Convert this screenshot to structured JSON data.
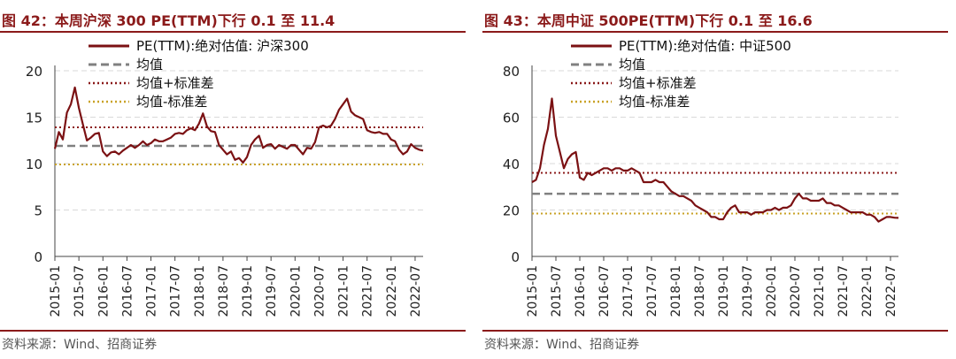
{
  "charts": [
    {
      "title": "图 42：本周沪深 300 PE(TTM)下行 0.1 至 11.4",
      "source": "资料来源：Wind、招商证券",
      "accent": "#8B1A1A"
    },
    {
      "title": "图 43：本周中证 500PE(TTM)下行 0.1 至 16.6",
      "source": "资料来源：Wind、招商证券",
      "accent": "#8B1A1A"
    }
  ],
  "chart_data": [
    {
      "type": "line",
      "xlabel": "",
      "ylabel": "",
      "ylim": [
        0,
        20
      ],
      "yticks": [
        0,
        5,
        10,
        15,
        20
      ],
      "xlim": [
        "2015-01",
        "2022-09"
      ],
      "xticks": [
        "2015-01",
        "2015-07",
        "2016-01",
        "2016-07",
        "2017-01",
        "2017-07",
        "2018-01",
        "2018-07",
        "2019-01",
        "2019-07",
        "2020-01",
        "2020-07",
        "2021-01",
        "2021-07",
        "2022-01",
        "2022-07"
      ],
      "grid": "horizontal dashed",
      "legend_position": "top",
      "series": [
        {
          "name": "PE(TTM):绝对估值: 沪深300",
          "color": "#7B1113",
          "style": "solid",
          "points": [
            [
              "2015-01",
              11.6
            ],
            [
              "2015-02",
              13.4
            ],
            [
              "2015-03",
              12.6
            ],
            [
              "2015-04",
              15.5
            ],
            [
              "2015-05",
              16.4
            ],
            [
              "2015-06",
              18.2
            ],
            [
              "2015-07",
              16.0
            ],
            [
              "2015-08",
              14.2
            ],
            [
              "2015-09",
              12.5
            ],
            [
              "2015-10",
              12.8
            ],
            [
              "2015-11",
              13.2
            ],
            [
              "2015-12",
              13.3
            ],
            [
              "2016-01",
              11.3
            ],
            [
              "2016-02",
              10.8
            ],
            [
              "2016-03",
              11.2
            ],
            [
              "2016-04",
              11.3
            ],
            [
              "2016-05",
              11.0
            ],
            [
              "2016-06",
              11.4
            ],
            [
              "2016-07",
              11.7
            ],
            [
              "2016-08",
              12.0
            ],
            [
              "2016-09",
              11.7
            ],
            [
              "2016-10",
              12.0
            ],
            [
              "2016-11",
              12.4
            ],
            [
              "2016-12",
              12.0
            ],
            [
              "2017-01",
              12.2
            ],
            [
              "2017-02",
              12.6
            ],
            [
              "2017-03",
              12.4
            ],
            [
              "2017-04",
              12.4
            ],
            [
              "2017-05",
              12.6
            ],
            [
              "2017-06",
              12.8
            ],
            [
              "2017-07",
              13.2
            ],
            [
              "2017-08",
              13.3
            ],
            [
              "2017-09",
              13.2
            ],
            [
              "2017-10",
              13.6
            ],
            [
              "2017-11",
              13.8
            ],
            [
              "2017-12",
              13.6
            ],
            [
              "2018-01",
              14.3
            ],
            [
              "2018-02",
              15.4
            ],
            [
              "2018-03",
              14.0
            ],
            [
              "2018-04",
              13.5
            ],
            [
              "2018-05",
              13.4
            ],
            [
              "2018-06",
              12.0
            ],
            [
              "2018-07",
              11.5
            ],
            [
              "2018-08",
              11.0
            ],
            [
              "2018-09",
              11.3
            ],
            [
              "2018-10",
              10.4
            ],
            [
              "2018-11",
              10.6
            ],
            [
              "2018-12",
              10.1
            ],
            [
              "2019-01",
              10.7
            ],
            [
              "2019-02",
              12.0
            ],
            [
              "2019-03",
              12.6
            ],
            [
              "2019-04",
              13.0
            ],
            [
              "2019-05",
              11.7
            ],
            [
              "2019-06",
              12.0
            ],
            [
              "2019-07",
              12.1
            ],
            [
              "2019-08",
              11.6
            ],
            [
              "2019-09",
              12.0
            ],
            [
              "2019-10",
              11.8
            ],
            [
              "2019-11",
              11.6
            ],
            [
              "2019-12",
              12.0
            ],
            [
              "2020-01",
              12.0
            ],
            [
              "2020-02",
              11.5
            ],
            [
              "2020-03",
              11.0
            ],
            [
              "2020-04",
              11.7
            ],
            [
              "2020-05",
              11.6
            ],
            [
              "2020-06",
              12.3
            ],
            [
              "2020-07",
              13.9
            ],
            [
              "2020-08",
              14.1
            ],
            [
              "2020-09",
              13.9
            ],
            [
              "2020-10",
              14.1
            ],
            [
              "2020-11",
              14.8
            ],
            [
              "2020-12",
              15.8
            ],
            [
              "2021-01",
              16.4
            ],
            [
              "2021-02",
              17.0
            ],
            [
              "2021-03",
              15.6
            ],
            [
              "2021-04",
              15.2
            ],
            [
              "2021-05",
              15.0
            ],
            [
              "2021-06",
              14.8
            ],
            [
              "2021-07",
              13.6
            ],
            [
              "2021-08",
              13.4
            ],
            [
              "2021-09",
              13.3
            ],
            [
              "2021-10",
              13.4
            ],
            [
              "2021-11",
              13.2
            ],
            [
              "2021-12",
              13.2
            ],
            [
              "2022-01",
              12.6
            ],
            [
              "2022-02",
              12.4
            ],
            [
              "2022-03",
              11.5
            ],
            [
              "2022-04",
              11.0
            ],
            [
              "2022-05",
              11.3
            ],
            [
              "2022-06",
              12.1
            ],
            [
              "2022-07",
              11.7
            ],
            [
              "2022-08",
              11.5
            ],
            [
              "2022-09",
              11.4
            ]
          ]
        },
        {
          "name": "均值",
          "color": "#808080",
          "style": "dashed",
          "value": 11.9
        },
        {
          "name": "均值+标准差",
          "color": "#8B1A1A",
          "style": "dotted",
          "value": 13.9
        },
        {
          "name": "均值-标准差",
          "color": "#C9A227",
          "style": "dotted",
          "value": 9.9
        }
      ]
    },
    {
      "type": "line",
      "xlabel": "",
      "ylabel": "",
      "ylim": [
        0,
        80
      ],
      "yticks": [
        0,
        20,
        40,
        60,
        80
      ],
      "xlim": [
        "2015-01",
        "2022-09"
      ],
      "xticks": [
        "2015-01",
        "2015-07",
        "2016-01",
        "2016-07",
        "2017-01",
        "2017-07",
        "2018-01",
        "2018-07",
        "2019-01",
        "2019-07",
        "2020-01",
        "2020-07",
        "2021-01",
        "2021-07",
        "2022-01",
        "2022-07"
      ],
      "grid": "horizontal dashed",
      "legend_position": "top",
      "series": [
        {
          "name": "PE(TTM):绝对估值: 中证500",
          "color": "#7B1113",
          "style": "solid",
          "points": [
            [
              "2015-01",
              32
            ],
            [
              "2015-02",
              33
            ],
            [
              "2015-03",
              38
            ],
            [
              "2015-04",
              48
            ],
            [
              "2015-05",
              55
            ],
            [
              "2015-06",
              68
            ],
            [
              "2015-07",
              52
            ],
            [
              "2015-08",
              45
            ],
            [
              "2015-09",
              38
            ],
            [
              "2015-10",
              42
            ],
            [
              "2015-11",
              44
            ],
            [
              "2015-12",
              45
            ],
            [
              "2016-01",
              34
            ],
            [
              "2016-02",
              33
            ],
            [
              "2016-03",
              36
            ],
            [
              "2016-04",
              35
            ],
            [
              "2016-05",
              36
            ],
            [
              "2016-06",
              37
            ],
            [
              "2016-07",
              38
            ],
            [
              "2016-08",
              38
            ],
            [
              "2016-09",
              37
            ],
            [
              "2016-10",
              38
            ],
            [
              "2016-11",
              38
            ],
            [
              "2016-12",
              37
            ],
            [
              "2017-01",
              37
            ],
            [
              "2017-02",
              38
            ],
            [
              "2017-03",
              37
            ],
            [
              "2017-04",
              36
            ],
            [
              "2017-05",
              32
            ],
            [
              "2017-06",
              32
            ],
            [
              "2017-07",
              32
            ],
            [
              "2017-08",
              33
            ],
            [
              "2017-09",
              32
            ],
            [
              "2017-10",
              32
            ],
            [
              "2017-11",
              30
            ],
            [
              "2017-12",
              28
            ],
            [
              "2018-01",
              27
            ],
            [
              "2018-02",
              26
            ],
            [
              "2018-03",
              26
            ],
            [
              "2018-04",
              25
            ],
            [
              "2018-05",
              24
            ],
            [
              "2018-06",
              22
            ],
            [
              "2018-07",
              21
            ],
            [
              "2018-08",
              20
            ],
            [
              "2018-09",
              19
            ],
            [
              "2018-10",
              17
            ],
            [
              "2018-11",
              17
            ],
            [
              "2018-12",
              16
            ],
            [
              "2019-01",
              16
            ],
            [
              "2019-02",
              19
            ],
            [
              "2019-03",
              21
            ],
            [
              "2019-04",
              22
            ],
            [
              "2019-05",
              19
            ],
            [
              "2019-06",
              19
            ],
            [
              "2019-07",
              19
            ],
            [
              "2019-08",
              18
            ],
            [
              "2019-09",
              19
            ],
            [
              "2019-10",
              19
            ],
            [
              "2019-11",
              19
            ],
            [
              "2019-12",
              20
            ],
            [
              "2020-01",
              20
            ],
            [
              "2020-02",
              21
            ],
            [
              "2020-03",
              20
            ],
            [
              "2020-04",
              21
            ],
            [
              "2020-05",
              21
            ],
            [
              "2020-06",
              22
            ],
            [
              "2020-07",
              25
            ],
            [
              "2020-08",
              27
            ],
            [
              "2020-09",
              25
            ],
            [
              "2020-10",
              25
            ],
            [
              "2020-11",
              24
            ],
            [
              "2020-12",
              24
            ],
            [
              "2021-01",
              24
            ],
            [
              "2021-02",
              25
            ],
            [
              "2021-03",
              23
            ],
            [
              "2021-04",
              23
            ],
            [
              "2021-05",
              22
            ],
            [
              "2021-06",
              22
            ],
            [
              "2021-07",
              21
            ],
            [
              "2021-08",
              20
            ],
            [
              "2021-09",
              19
            ],
            [
              "2021-10",
              19
            ],
            [
              "2021-11",
              19
            ],
            [
              "2021-12",
              19
            ],
            [
              "2022-01",
              18
            ],
            [
              "2022-02",
              18
            ],
            [
              "2022-03",
              17
            ],
            [
              "2022-04",
              15
            ],
            [
              "2022-05",
              16
            ],
            [
              "2022-06",
              17
            ],
            [
              "2022-07",
              17
            ],
            [
              "2022-08",
              16.7
            ],
            [
              "2022-09",
              16.6
            ]
          ]
        },
        {
          "name": "均值",
          "color": "#808080",
          "style": "dashed",
          "value": 27
        },
        {
          "name": "均值+标准差",
          "color": "#8B1A1A",
          "style": "dotted",
          "value": 36
        },
        {
          "name": "均值-标准差",
          "color": "#C9A227",
          "style": "dotted",
          "value": 18.5
        }
      ]
    }
  ]
}
